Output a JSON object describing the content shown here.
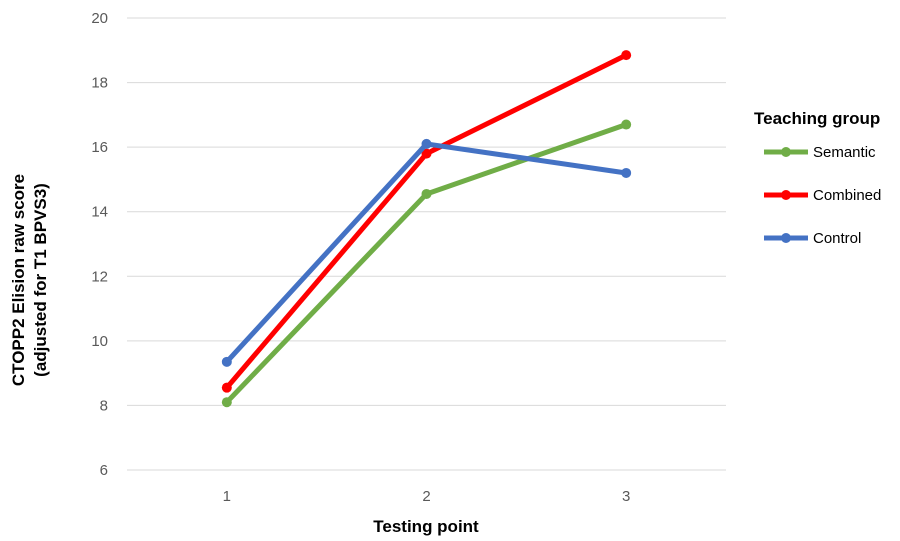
{
  "chart_data": {
    "type": "line",
    "x": [
      1,
      2,
      3
    ],
    "xlabel": "Testing point",
    "ylabel_lines": [
      "CTOPP2 Elision raw score",
      "(adjusted for T1 BPVS3)"
    ],
    "ylim": [
      6,
      20
    ],
    "yticks": [
      6,
      8,
      10,
      12,
      14,
      16,
      18,
      20
    ],
    "grid": true,
    "legend_title": "Teaching group",
    "legend_position": "right",
    "series": [
      {
        "name": "Semantic",
        "color": "#70ad47",
        "values": [
          8.1,
          14.55,
          16.7
        ]
      },
      {
        "name": "Combined",
        "color": "#ff0000",
        "values": [
          8.55,
          15.8,
          18.85
        ]
      },
      {
        "name": "Control",
        "color": "#4472c4",
        "values": [
          9.35,
          16.1,
          15.2
        ]
      }
    ]
  }
}
